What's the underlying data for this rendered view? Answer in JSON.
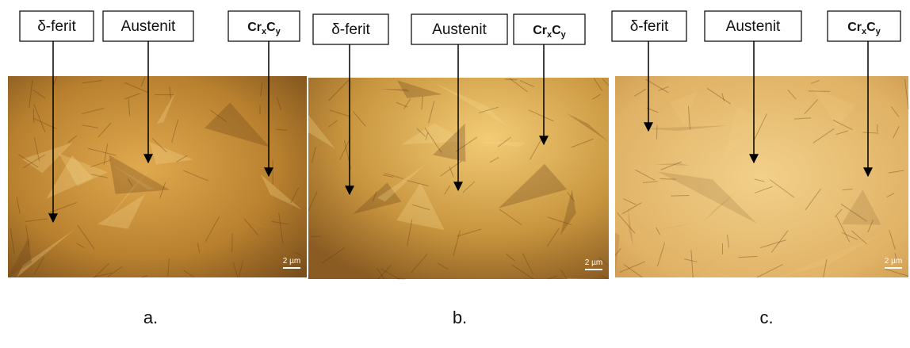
{
  "panels": [
    {
      "labels": {
        "ferrite": "δ-ferit",
        "austenite": "Austenit",
        "carbide": [
          "Cr",
          "x",
          "C",
          "y"
        ]
      },
      "scale_bar": "2 µm",
      "caption": "a."
    },
    {
      "labels": {
        "ferrite": "δ-ferit",
        "austenite": "Austenit",
        "carbide": [
          "Cr",
          "x",
          "C",
          "y"
        ]
      },
      "scale_bar": "2 µm",
      "caption": "b."
    },
    {
      "labels": {
        "ferrite": "δ-ferit",
        "austenite": "Austenit",
        "carbide": [
          "Cr",
          "x",
          "C",
          "y"
        ]
      },
      "scale_bar": "2 µm",
      "caption": "c."
    }
  ]
}
